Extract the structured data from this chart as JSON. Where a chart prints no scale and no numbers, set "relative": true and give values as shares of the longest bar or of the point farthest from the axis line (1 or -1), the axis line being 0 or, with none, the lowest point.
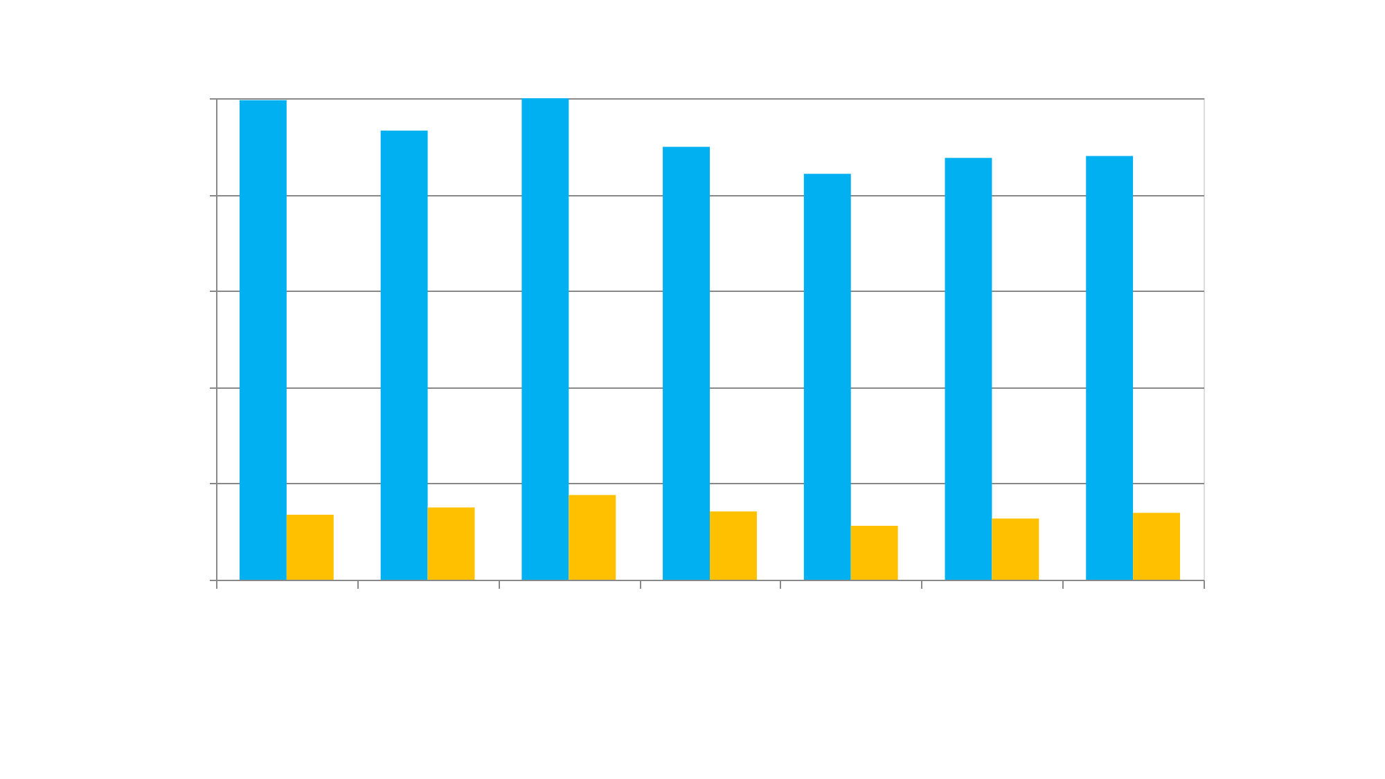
{
  "chart_data": {
    "type": "bar",
    "relative": true,
    "categories": [
      null,
      null,
      null,
      null,
      null,
      null,
      null
    ],
    "series": [
      {
        "color": "#00b0f0",
        "values": [
          0.996,
          0.933,
          1,
          0.899,
          0.843,
          0.876,
          0.88
        ]
      },
      {
        "color": "#ffc000",
        "values": [
          0.135,
          0.15,
          0.176,
          0.142,
          0.112,
          0.127,
          0.139
        ]
      }
    ],
    "grid": "y"
  }
}
